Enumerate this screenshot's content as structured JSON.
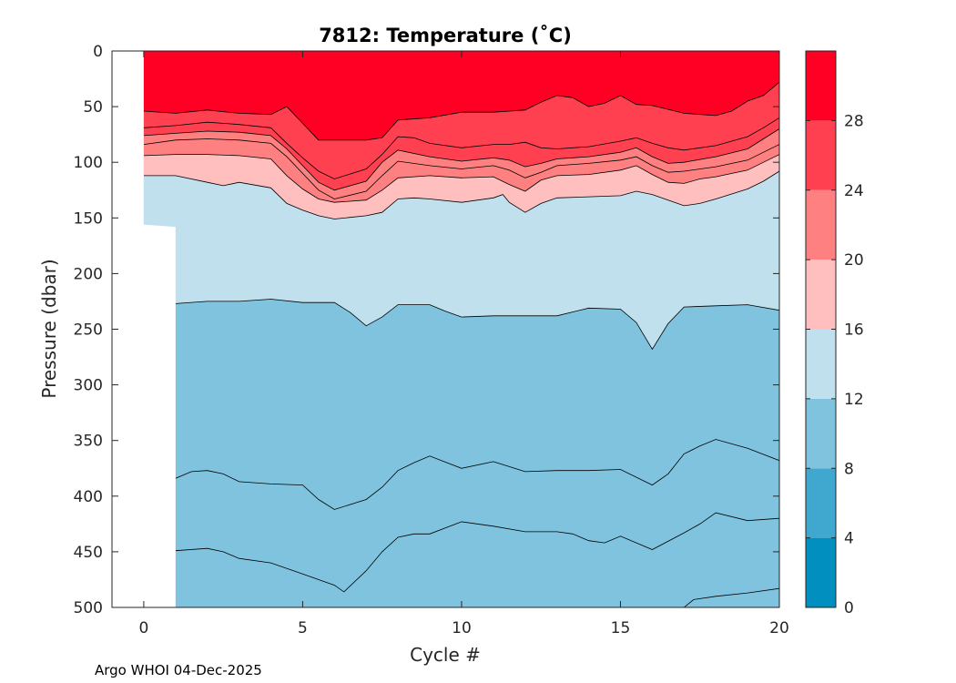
{
  "chart_data": {
    "type": "filled_contour",
    "title": "7812:  Temperature (˚C)",
    "xlabel": "Cycle #",
    "ylabel": "Pressure (dbar)",
    "xlim": [
      -1,
      20
    ],
    "ylim": [
      0,
      500
    ],
    "y_reversed": true,
    "x_ticks": [
      0,
      5,
      10,
      15,
      20
    ],
    "y_ticks": [
      0,
      50,
      100,
      150,
      200,
      250,
      300,
      350,
      400,
      450,
      500
    ],
    "colorbar": {
      "range": [
        0,
        32
      ],
      "ticks": [
        0,
        4,
        8,
        12,
        16,
        20,
        24,
        28
      ],
      "levels": [
        0,
        4,
        8,
        12,
        16,
        20,
        24,
        28,
        32
      ],
      "colors": [
        "#008fbf",
        "#40a8cf",
        "#7fc3de",
        "#bfe0ec",
        "#ffbfbf",
        "#ff8080",
        "#ff4050",
        "#ff0024"
      ]
    },
    "missing_data_region": [
      {
        "x": -1,
        "y": 0
      },
      {
        "x": 0,
        "y": 0
      },
      {
        "x": 0,
        "y": 156
      },
      {
        "x": 1,
        "y": 158
      },
      {
        "x": 1,
        "y": 500
      },
      {
        "x": -1,
        "y": 500
      }
    ],
    "isotherms": [
      {
        "band_below": "#7fc3de",
        "points": [
          [
            1,
            500
          ],
          [
            17,
            500
          ],
          [
            17.3,
            493
          ],
          [
            18,
            490
          ],
          [
            19,
            487
          ],
          [
            20,
            483
          ],
          [
            20,
            500
          ]
        ]
      },
      {
        "band_below": "#7fc3de",
        "points": [
          [
            1,
            449
          ],
          [
            2,
            447
          ],
          [
            2.5,
            450
          ],
          [
            3,
            456
          ],
          [
            4,
            460
          ],
          [
            5,
            470
          ],
          [
            6,
            480
          ],
          [
            6.3,
            486
          ],
          [
            7,
            467
          ],
          [
            7.5,
            450
          ],
          [
            8,
            437
          ],
          [
            8.5,
            434
          ],
          [
            9,
            434
          ],
          [
            10,
            423
          ],
          [
            11,
            427
          ],
          [
            12,
            432
          ],
          [
            13,
            432
          ],
          [
            13.5,
            434
          ],
          [
            14,
            440
          ],
          [
            14.5,
            442
          ],
          [
            15,
            436
          ],
          [
            15.5,
            442
          ],
          [
            16,
            448
          ],
          [
            17,
            433
          ],
          [
            17.5,
            425
          ],
          [
            18,
            415
          ],
          [
            19,
            422
          ],
          [
            20,
            420
          ]
        ]
      },
      {
        "band_below": "#7fc3de",
        "points": [
          [
            1,
            384
          ],
          [
            1.5,
            378
          ],
          [
            2,
            377
          ],
          [
            2.5,
            380
          ],
          [
            3,
            387
          ],
          [
            4,
            389
          ],
          [
            5,
            390
          ],
          [
            5.5,
            403
          ],
          [
            6,
            412
          ],
          [
            7,
            403
          ],
          [
            7.5,
            392
          ],
          [
            8,
            377
          ],
          [
            8.5,
            370
          ],
          [
            9,
            364
          ],
          [
            10,
            375
          ],
          [
            11,
            369
          ],
          [
            12,
            378
          ],
          [
            13,
            377
          ],
          [
            14,
            377
          ],
          [
            15,
            376
          ],
          [
            16,
            390
          ],
          [
            16.5,
            380
          ],
          [
            17,
            362
          ],
          [
            17.5,
            355
          ],
          [
            18,
            349
          ],
          [
            19,
            357
          ],
          [
            20,
            368
          ]
        ]
      },
      {
        "band_below": "#7fc3de",
        "points": [
          [
            1,
            227
          ],
          [
            2,
            225
          ],
          [
            3,
            225
          ],
          [
            4,
            223
          ],
          [
            5,
            226
          ],
          [
            6,
            226
          ],
          [
            6.5,
            235
          ],
          [
            7,
            247
          ],
          [
            7.5,
            239
          ],
          [
            8,
            228
          ],
          [
            9,
            228
          ],
          [
            9.5,
            234
          ],
          [
            10,
            239
          ],
          [
            11,
            238
          ],
          [
            12,
            238
          ],
          [
            13,
            238
          ],
          [
            14,
            231
          ],
          [
            15,
            232
          ],
          [
            15.5,
            244
          ],
          [
            16,
            268
          ],
          [
            16.5,
            245
          ],
          [
            17,
            230
          ],
          [
            18,
            229
          ],
          [
            19,
            228
          ],
          [
            20,
            233
          ]
        ]
      },
      {
        "band_below": "#bfe0ec",
        "points": [
          [
            0,
            112
          ],
          [
            1,
            112
          ],
          [
            2,
            118
          ],
          [
            2.5,
            121
          ],
          [
            3,
            118
          ],
          [
            4,
            123
          ],
          [
            4.5,
            137
          ],
          [
            5,
            143
          ],
          [
            5.5,
            148
          ],
          [
            6,
            151
          ],
          [
            7,
            148
          ],
          [
            7.5,
            145
          ],
          [
            8,
            133
          ],
          [
            8.5,
            132
          ],
          [
            9,
            133
          ],
          [
            10,
            136
          ],
          [
            11,
            132
          ],
          [
            11.3,
            129
          ],
          [
            11.5,
            136
          ],
          [
            12,
            145
          ],
          [
            12.5,
            137
          ],
          [
            13,
            132
          ],
          [
            14,
            131
          ],
          [
            15,
            130
          ],
          [
            15.5,
            126
          ],
          [
            16,
            129
          ],
          [
            16.5,
            134
          ],
          [
            17,
            139
          ],
          [
            17.5,
            137
          ],
          [
            18,
            133
          ],
          [
            19,
            124
          ],
          [
            19.5,
            117
          ],
          [
            20,
            108
          ]
        ]
      },
      {
        "band_below": "#ffbfbf",
        "points": [
          [
            0,
            94
          ],
          [
            1,
            93
          ],
          [
            2,
            93
          ],
          [
            3,
            94
          ],
          [
            4,
            97
          ],
          [
            4.5,
            112
          ],
          [
            5,
            124
          ],
          [
            5.5,
            133
          ],
          [
            6,
            136
          ],
          [
            7,
            134
          ],
          [
            7.5,
            125
          ],
          [
            8,
            114
          ],
          [
            8.5,
            113
          ],
          [
            9,
            112
          ],
          [
            10,
            114
          ],
          [
            11,
            113
          ],
          [
            11.5,
            120
          ],
          [
            12,
            126
          ],
          [
            12.5,
            116
          ],
          [
            13,
            112
          ],
          [
            14,
            111
          ],
          [
            15,
            107
          ],
          [
            15.5,
            103
          ],
          [
            16,
            111
          ],
          [
            16.5,
            118
          ],
          [
            17,
            119
          ],
          [
            17.5,
            115
          ],
          [
            18,
            113
          ],
          [
            19,
            107
          ],
          [
            19.5,
            100
          ],
          [
            20,
            93
          ]
        ]
      },
      {
        "band_below": "#ff8080",
        "points": [
          [
            0,
            84
          ],
          [
            1,
            80
          ],
          [
            2,
            79
          ],
          [
            3,
            80
          ],
          [
            4,
            83
          ],
          [
            4.5,
            95
          ],
          [
            5,
            110
          ],
          [
            5.5,
            125
          ],
          [
            6,
            133
          ],
          [
            7,
            126
          ],
          [
            7.5,
            112
          ],
          [
            8,
            99
          ],
          [
            9,
            103
          ],
          [
            10,
            106
          ],
          [
            11,
            103
          ],
          [
            11.5,
            107
          ],
          [
            12,
            114
          ],
          [
            12.5,
            109
          ],
          [
            13,
            103
          ],
          [
            14,
            101
          ],
          [
            15,
            98
          ],
          [
            15.5,
            95
          ],
          [
            16,
            103
          ],
          [
            16.5,
            109
          ],
          [
            17,
            108
          ],
          [
            18,
            104
          ],
          [
            19,
            98
          ],
          [
            19.5,
            91
          ],
          [
            20,
            84
          ]
        ]
      },
      {
        "band_below": "#ff8080",
        "points": [
          [
            0,
            76
          ],
          [
            1,
            74
          ],
          [
            2,
            72
          ],
          [
            3,
            73
          ],
          [
            4,
            76
          ],
          [
            4.5,
            88
          ],
          [
            5,
            103
          ],
          [
            5.5,
            118
          ],
          [
            6,
            125
          ],
          [
            7,
            117
          ],
          [
            7.5,
            100
          ],
          [
            8,
            89
          ],
          [
            9,
            95
          ],
          [
            10,
            99
          ],
          [
            11,
            96
          ],
          [
            11.5,
            98
          ],
          [
            12,
            104
          ],
          [
            12.5,
            101
          ],
          [
            13,
            97
          ],
          [
            14,
            95
          ],
          [
            15,
            91
          ],
          [
            15.5,
            87
          ],
          [
            16,
            95
          ],
          [
            16.5,
            101
          ],
          [
            17,
            100
          ],
          [
            18,
            95
          ],
          [
            19,
            88
          ],
          [
            19.5,
            79
          ],
          [
            20,
            70
          ]
        ]
      },
      {
        "band_below": "#ff4050",
        "points": [
          [
            0,
            69
          ],
          [
            1,
            67
          ],
          [
            2,
            64
          ],
          [
            3,
            66
          ],
          [
            4,
            69
          ],
          [
            4.5,
            83
          ],
          [
            5,
            96
          ],
          [
            5.5,
            108
          ],
          [
            6,
            115
          ],
          [
            7,
            106
          ],
          [
            7.5,
            93
          ],
          [
            8,
            77
          ],
          [
            8.5,
            78
          ],
          [
            9,
            83
          ],
          [
            10,
            87
          ],
          [
            11,
            84
          ],
          [
            11.5,
            84
          ],
          [
            12,
            82
          ],
          [
            12.5,
            87
          ],
          [
            13,
            88
          ],
          [
            14,
            86
          ],
          [
            15,
            81
          ],
          [
            15.5,
            78
          ],
          [
            16,
            83
          ],
          [
            16.5,
            87
          ],
          [
            17,
            89
          ],
          [
            18,
            85
          ],
          [
            19,
            77
          ],
          [
            19.5,
            69
          ],
          [
            20,
            60
          ]
        ]
      },
      {
        "band_below": "#ff4050",
        "points": [
          [
            0,
            54
          ],
          [
            1,
            56
          ],
          [
            2,
            53
          ],
          [
            3,
            56
          ],
          [
            4,
            57
          ],
          [
            4.5,
            50
          ],
          [
            5,
            65
          ],
          [
            5.5,
            80
          ],
          [
            6,
            80
          ],
          [
            7,
            80
          ],
          [
            7.5,
            78
          ],
          [
            8,
            62
          ],
          [
            9,
            60
          ],
          [
            10,
            55
          ],
          [
            11,
            55
          ],
          [
            12,
            53
          ],
          [
            12.5,
            46
          ],
          [
            13,
            40
          ],
          [
            13.5,
            42
          ],
          [
            14,
            50
          ],
          [
            14.5,
            47
          ],
          [
            15,
            40
          ],
          [
            15.5,
            48
          ],
          [
            16,
            49
          ],
          [
            17,
            56
          ],
          [
            18,
            58
          ],
          [
            18.5,
            54
          ],
          [
            19,
            45
          ],
          [
            19.5,
            40
          ],
          [
            20,
            28
          ]
        ]
      }
    ]
  },
  "footer": {
    "text": "Argo WHOI 04-Dec-2025"
  }
}
